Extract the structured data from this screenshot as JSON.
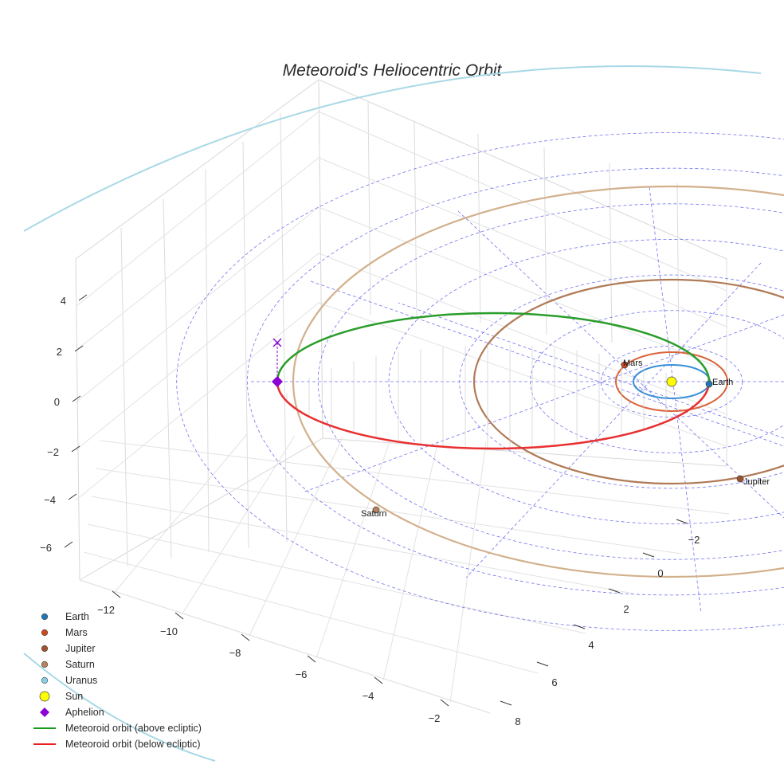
{
  "chart_data": {
    "type": "scatter3d",
    "title": "Meteoroid's Heliocentric Orbit",
    "axes": {
      "x": {
        "label": "",
        "ticks": [
          -12,
          -10,
          -8,
          -6,
          -4,
          -2
        ],
        "tick_labels": [
          "−12",
          "−10",
          "−8",
          "−6",
          "−4",
          "−2"
        ]
      },
      "y": {
        "label": "",
        "ticks": [
          -2,
          0,
          2,
          4,
          6,
          8
        ],
        "tick_labels": [
          "−2",
          "0",
          "2",
          "4",
          "6",
          "8"
        ]
      },
      "z": {
        "label": "",
        "ticks": [
          -6,
          -4,
          -2,
          0,
          2,
          4
        ],
        "tick_labels": [
          "−6",
          "−4",
          "−2",
          "0",
          "2",
          "4"
        ]
      }
    },
    "bodies": [
      {
        "name": "Earth",
        "orbit_radius_au": 1.0,
        "color": "#1f77b4",
        "label": "Earth"
      },
      {
        "name": "Mars",
        "orbit_radius_au": 1.52,
        "color": "#cc4a1f",
        "label": "Mars"
      },
      {
        "name": "Jupiter",
        "orbit_radius_au": 5.2,
        "color": "#a0522d",
        "label": "Jupiter"
      },
      {
        "name": "Saturn",
        "orbit_radius_au": 9.54,
        "color": "#b8825a",
        "label": "Saturn"
      },
      {
        "name": "Uranus",
        "orbit_radius_au": 19.2,
        "color": "#87ceeb",
        "label": ""
      },
      {
        "name": "Sun",
        "orbit_radius_au": 0,
        "color": "#ffff00",
        "label": ""
      }
    ],
    "meteoroid": {
      "aphelion_au": 10.5,
      "perihelion_au": 1.0,
      "above_color": "#2a9d2a",
      "below_color": "#e83030",
      "aphelion_color": "#8b00d4"
    },
    "legend": [
      {
        "label": "Earth",
        "marker": "circle",
        "color": "#1f77b4"
      },
      {
        "label": "Mars",
        "marker": "circle",
        "color": "#cc4a1f"
      },
      {
        "label": "Jupiter",
        "marker": "circle",
        "color": "#a0522d"
      },
      {
        "label": "Saturn",
        "marker": "circle",
        "color": "#b8825a"
      },
      {
        "label": "Uranus",
        "marker": "circle",
        "color": "#87ceeb"
      },
      {
        "label": "Sun",
        "marker": "circle-large",
        "color": "#ffff00"
      },
      {
        "label": "Aphelion",
        "marker": "diamond",
        "color": "#8b00d4"
      },
      {
        "label": "Meteoroid orbit (above ecliptic)",
        "marker": "line",
        "color": "#1a9a1a"
      },
      {
        "label": "Meteoroid orbit (below ecliptic)",
        "marker": "line",
        "color": "#e82020"
      }
    ],
    "legend_position": "bottom-left"
  }
}
